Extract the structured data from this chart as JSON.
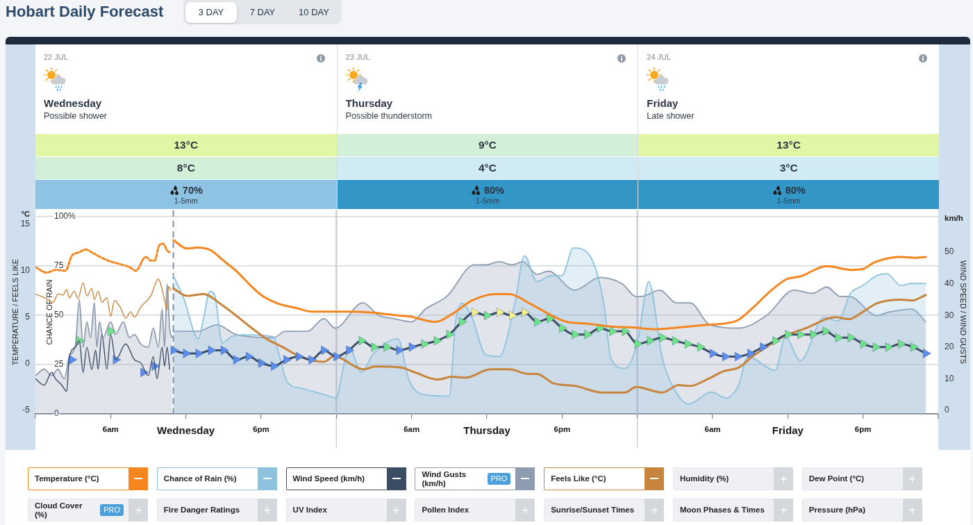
{
  "chart_data": [
    {
      "type": "other",
      "title": "Hobart Daily Forecast",
      "annotations": [
        "3 DAY",
        "7 DAY",
        "10 DAY"
      ]
    },
    {
      "type": "other",
      "categories": [
        "Wednesday",
        "Thursday",
        "Friday"
      ],
      "series": [
        {
          "colors": [
            "#e2f7a5",
            "#d3efd7",
            "#e2f7a5"
          ],
          "values": [
            13,
            9,
            13
          ],
          "value_labels": [
            "13°C",
            "9°C",
            "13°C"
          ]
        },
        {
          "colors": [
            "#d3efd7",
            "#d1ebf5",
            "#d1ebf5"
          ],
          "values": [
            8,
            4,
            3
          ],
          "value_labels": [
            "8°C",
            "4°C",
            "3°C"
          ]
        },
        {
          "colors": [
            "#8ec3e3",
            "#3296c6",
            "#3296c6"
          ],
          "values": [
            70,
            80,
            80
          ],
          "value_labels": [
            "70%",
            "80%",
            "80%"
          ]
        }
      ],
      "annotations": [
        "22 JUL",
        "Possible shower",
        "1-5mm",
        "23 JUL",
        "Possible thunderstorm",
        "1-5mm",
        "24 JUL",
        "Late shower",
        "1-5mm"
      ]
    },
    {
      "type": "line",
      "ylabel": "TEMPERATURE / FEELS LIKE",
      "y2label": "CHANCE OF RAIN",
      "y3label": "WIND SPEED / WIND GUSTS",
      "xlim": [
        "--07-22T00:00",
        "--07-25T00:00"
      ],
      "xticks": [
        {
          "value": "--07-22T00:00",
          "label": null
        },
        {
          "value": "--07-22T06:00",
          "label": "6am"
        },
        {
          "value": "--07-22T12:00",
          "label": "Wednesday"
        },
        {
          "value": "--07-22T18:00",
          "label": "6pm"
        },
        {
          "value": "--07-23T00:00",
          "label": null
        },
        {
          "value": "--07-23T06:00",
          "label": "6am"
        },
        {
          "value": "--07-23T12:00",
          "label": "Thursday"
        },
        {
          "value": "--07-23T18:00",
          "label": "6pm"
        },
        {
          "value": "--07-24T00:00",
          "label": null
        },
        {
          "value": "--07-24T06:00",
          "label": "6am"
        },
        {
          "value": "--07-24T12:00",
          "label": "Friday"
        },
        {
          "value": "--07-24T18:00",
          "label": "6pm"
        },
        {
          "value": "--07-25T00:00",
          "label": null
        }
      ],
      "ylim": [
        -5.4,
        16.5
      ],
      "yticks": [
        -5,
        0,
        5,
        10,
        15
      ],
      "y2lim": [
        0,
        103
      ],
      "y2ticks": [
        0,
        25,
        50,
        75,
        {
          "value": 100,
          "label": "100%"
        }
      ],
      "y3lim": [
        -1.1,
        63.2
      ],
      "y3ticks": [
        0,
        10,
        20,
        30,
        40,
        50
      ],
      "grid": "y2",
      "legend": "bottom",
      "marker": "none",
      "ref_lines": [
        {
          "axis": "x",
          "value": "--07-22T11:00",
          "line_style": "dashed",
          "color": "#7d8ea3"
        },
        {
          "axis": "x",
          "value": "--07-23T00:00",
          "color": "#c9d0d8"
        },
        {
          "axis": "x",
          "value": "--07-24T00:00",
          "color": "#c9d0d8"
        }
      ],
      "annotations": [
        "°C",
        "km/h",
        "PRO",
        "PRO",
        "Humidity (%)",
        "Dew Point (°C)",
        "Cloud Cover (%)",
        "Fire Danger Ratings",
        "UV Index",
        "Pollen Index",
        "Sunrise/Sunset Times",
        "Moon Phases & Times",
        "Pressure (hPa)"
      ],
      "series": [
        {
          "name": "Temperature (°C)",
          "type": "line",
          "color": "#f5861f",
          "x": [
            "--07-22T11:00",
            "--07-22T12:06",
            "--07-22T12:54",
            "--07-22T14:00",
            "--07-22T14:54",
            "--07-22T16:00",
            "--07-22T17:06",
            "--07-22T18:00",
            "--07-22T19:18",
            "--07-22T20:48",
            "--07-22T22:06",
            "--07-23T00:18",
            "--07-23T01:00",
            "--07-23T02:54",
            "--07-23T04:54",
            "--07-23T05:48",
            "--07-23T07:54",
            "--07-23T09:24",
            "--07-23T10:48",
            "--07-23T12:42",
            "--07-23T13:48",
            "--07-23T15:24",
            "--07-23T17:18",
            "--07-23T18:24",
            "--07-23T20:06",
            "--07-23T21:54",
            "--07-23T23:42",
            "--07-24T01:24",
            "--07-24T03:18",
            "--07-24T05:42",
            "--07-24T07:54",
            "--07-24T09:12",
            "--07-24T10:36",
            "--07-24T11:54",
            "--07-24T13:00",
            "--07-24T15:06",
            "--07-24T17:06",
            "--07-24T18:00",
            "--07-24T18:54",
            "--07-24T21:00",
            "--07-24T22:06",
            "--07-24T23:00"
          ],
          "values": [
            13.3,
            12.4,
            12.5,
            12.2,
            11.2,
            10,
            8.5,
            7.4,
            6.5,
            6,
            5.6,
            5.6,
            5.6,
            5.5,
            5.2,
            5.1,
            4.5,
            5.5,
            6.8,
            7.5,
            7.5,
            6.5,
            5.1,
            4.5,
            4.3,
            4,
            3.9,
            3.7,
            3.9,
            4.2,
            4.6,
            6,
            7.8,
            9.1,
            9.4,
            10.5,
            10.1,
            10.2,
            10.9,
            11.5,
            11.4,
            11.5
          ]
        },
        {
          "type": "line",
          "color": "#f5861f",
          "line_style": "dotted",
          "x": [
            "--07-22T00:00",
            "--07-22T00:54",
            "--07-22T01:36",
            "--07-22T02:24",
            "--07-22T02:54",
            "--07-22T03:30",
            "--07-22T04:00",
            "--07-22T04:36",
            "--07-22T05:18",
            "--07-22T06:00",
            "--07-22T06:48",
            "--07-22T07:30",
            "--07-22T08:00",
            "--07-22T08:48",
            "--07-22T09:12",
            "--07-22T09:30",
            "--07-22T09:54",
            "--07-22T10:12",
            "--07-22T10:30",
            "--07-22T10:48"
          ],
          "values": [
            10.4,
            9.8,
            10.1,
            10,
            11.6,
            12,
            12.3,
            11.9,
            11.4,
            11,
            10.7,
            10.4,
            10,
            11.5,
            11.1,
            11.1,
            12.8,
            12.9,
            12.2,
            11.9
          ]
        },
        {
          "name": "Chance of Rain (%)",
          "type": "area",
          "axis": "y2",
          "color": "#8ec3e0",
          "x": [
            "--07-22T11:00",
            "--07-22T11:48",
            "--07-22T13:00",
            "--07-22T13:24",
            "--07-22T13:54",
            "--07-22T14:18",
            "--07-22T14:54",
            "--07-22T15:36",
            "--07-22T16:36",
            "--07-22T19:00",
            "--07-22T19:18",
            "--07-22T20:06",
            "--07-22T21:12",
            "--07-22T23:24",
            "--07-23T00:00",
            "--07-23T00:30",
            "--07-23T01:00",
            "--07-23T02:00",
            "--07-23T02:54",
            "--07-23T04:54",
            "--07-23T05:48",
            "--07-23T06:48",
            "--07-23T09:00",
            "--07-23T09:30",
            "--07-23T10:00",
            "--07-23T10:48",
            "--07-23T11:54",
            "--07-23T13:00",
            "--07-23T14:12",
            "--07-23T15:00",
            "--07-23T16:00",
            "--07-23T17:06",
            "--07-23T18:00",
            "--07-23T18:54",
            "--07-23T20:06",
            "--07-23T21:18",
            "--07-23T21:54",
            "--07-23T23:00",
            "--07-24T00:06",
            "--07-24T00:42",
            "--07-24T00:54",
            "--07-24T02:00",
            "--07-24T02:54",
            "--07-24T04:06",
            "--07-24T05:54",
            "--07-24T07:06",
            "--07-24T08:06",
            "--07-24T08:48",
            "--07-24T11:00",
            "--07-24T11:48",
            "--07-24T13:00",
            "--07-24T14:54",
            "--07-24T16:00",
            "--07-24T17:00",
            "--07-24T18:00",
            "--07-24T19:06",
            "--07-24T19:54",
            "--07-24T21:00",
            "--07-24T21:54",
            "--07-24T23:00"
          ],
          "values": [
            70,
            59,
            38,
            48,
            62,
            60,
            36,
            39,
            40,
            39,
            33,
            16,
            13,
            9,
            8,
            22,
            34,
            21,
            30,
            38,
            17,
            10,
            9,
            46,
            56,
            49,
            30,
            29,
            55,
            80,
            67,
            70,
            70,
            84,
            81,
            57,
            28,
            23,
            39,
            63,
            67,
            28,
            13,
            5,
            11,
            8,
            15,
            29,
            22,
            39,
            27,
            49,
            47,
            61,
            65,
            70,
            71,
            65,
            66,
            66
          ]
        },
        {
          "name": "Wind Speed (km/h)",
          "type": "line",
          "axis": "y3",
          "color": "#3b4d64",
          "marker": "triangle",
          "x": [
            "--07-22T11:00",
            "--07-22T12:00",
            "--07-22T13:00",
            "--07-22T14:00",
            "--07-22T15:00",
            "--07-22T16:00",
            "--07-22T17:00",
            "--07-22T18:00",
            "--07-22T19:00",
            "--07-22T20:00",
            "--07-22T21:00",
            "--07-22T22:00",
            "--07-22T23:00",
            "--07-23T00:00",
            "--07-23T01:00",
            "--07-23T02:00",
            "--07-23T03:00",
            "--07-23T04:00",
            "--07-23T05:00",
            "--07-23T06:00",
            "--07-23T07:00",
            "--07-23T08:00",
            "--07-23T09:00",
            "--07-23T10:00",
            "--07-23T11:00",
            "--07-23T12:00",
            "--07-23T13:00",
            "--07-23T14:00",
            "--07-23T15:00",
            "--07-23T16:00",
            "--07-23T17:00",
            "--07-23T18:00",
            "--07-23T19:00",
            "--07-23T20:00",
            "--07-23T21:00",
            "--07-23T22:00",
            "--07-23T23:00",
            "--07-24T00:00",
            "--07-24T01:00",
            "--07-24T02:00",
            "--07-24T03:00",
            "--07-24T04:00",
            "--07-24T05:00",
            "--07-24T06:00",
            "--07-24T07:00",
            "--07-24T08:00",
            "--07-24T09:00",
            "--07-24T10:00",
            "--07-24T11:00",
            "--07-24T12:00",
            "--07-24T13:00",
            "--07-24T14:00",
            "--07-24T15:00",
            "--07-24T16:00",
            "--07-24T17:00",
            "--07-24T18:00",
            "--07-24T19:00",
            "--07-24T20:00",
            "--07-24T21:00",
            "--07-24T22:00",
            "--07-24T23:00"
          ],
          "values": [
            19,
            18,
            18,
            19,
            19,
            16,
            17,
            15,
            14,
            16,
            17,
            16,
            19,
            17,
            19,
            22,
            20,
            20,
            19,
            20,
            21,
            22,
            24,
            28,
            31,
            30,
            31,
            30,
            31,
            28,
            29,
            26,
            24,
            24,
            26,
            25,
            25,
            21,
            22,
            23,
            22,
            21,
            20,
            18,
            17,
            17,
            18,
            20,
            22,
            24,
            24,
            24,
            25,
            23,
            23,
            21,
            20,
            20,
            21,
            20,
            18
          ],
          "colors": [
            "#5b8def",
            "#5b8def",
            "#5b8def",
            "#5b8def",
            "#5b8def",
            "#5b8def",
            "#5b8def",
            "#5b8def",
            "#5b8def",
            "#5b8def",
            "#5b8def",
            "#5b8def",
            "#5b8def",
            "#5b8def",
            "#5b8def",
            "#6fe38a",
            "#6fe38a",
            "#6fe38a",
            "#5b8def",
            "#5b8def",
            "#6fe38a",
            "#6fe38a",
            "#6fe38a",
            "#6fe38a",
            "#f3ef8a",
            "#6fe38a",
            "#f3ef8a",
            "#f3ef8a",
            "#f3ef8a",
            "#6fe38a",
            "#6fe38a",
            "#6fe38a",
            "#6fe38a",
            "#6fe38a",
            "#6fe38a",
            "#6fe38a",
            "#6fe38a",
            "#6fe38a",
            "#6fe38a",
            "#6fe38a",
            "#6fe38a",
            "#6fe38a",
            "#6fe38a",
            "#5b8def",
            "#5b8def",
            "#5b8def",
            "#5b8def",
            "#5b8def",
            "#6fe38a",
            "#6fe38a",
            "#6fe38a",
            "#6fe38a",
            "#6fe38a",
            "#6fe38a",
            "#6fe38a",
            "#6fe38a",
            "#6fe38a",
            "#6fe38a",
            "#6fe38a",
            "#6fe38a",
            "#5b8def"
          ]
        },
        {
          "type": "line",
          "axis": "y3",
          "color": "#3b4d64",
          "x": [
            "--07-22T00:00",
            "--07-22T00:42",
            "--07-22T01:18",
            "--07-22T01:36",
            "--07-22T02:06",
            "--07-22T02:30",
            "--07-22T02:42",
            "--07-22T03:12",
            "--07-22T03:30",
            "--07-22T03:48",
            "--07-22T04:06",
            "--07-22T04:30",
            "--07-22T04:48",
            "--07-22T05:00",
            "--07-22T05:18",
            "--07-22T05:42",
            "--07-22T06:00",
            "--07-22T06:24",
            "--07-22T07:12",
            "--07-22T07:54",
            "--07-22T08:24",
            "--07-22T09:00",
            "--07-22T09:24",
            "--07-22T09:42",
            "--07-22T10:06",
            "--07-22T10:18",
            "--07-22T10:30",
            "--07-22T10:42"
          ],
          "values": [
            10,
            8,
            12,
            10,
            8,
            6,
            17,
            20,
            22,
            12,
            20,
            13,
            19,
            13,
            24,
            13,
            24,
            16,
            21,
            16,
            15,
            11,
            17,
            10,
            20,
            14,
            20,
            13
          ]
        },
        {
          "type": "scatter",
          "axis": "y3",
          "color": "#5b8def",
          "marker": "triangle",
          "x": [
            "--07-22T02:54",
            "--07-22T03:30",
            "--07-22T06:00",
            "--07-22T06:24",
            "--07-22T08:36",
            "--07-22T09:30"
          ],
          "values": [
            16,
            22,
            25,
            16,
            12,
            14
          ],
          "colors": [
            "#5b8def",
            "#6fe38a",
            "#6fe38a",
            "#5b8def",
            "#5b8def",
            "#5b8def"
          ]
        },
        {
          "name": "Wind Gusts (km/h)",
          "type": "area",
          "axis": "y3",
          "color": "#8d9cb0",
          "x": [
            "--07-22T11:00",
            "--07-22T12:54",
            "--07-22T14:30",
            "--07-22T16:00",
            "--07-22T19:00",
            "--07-22T19:54",
            "--07-22T21:42",
            "--07-22T23:00",
            "--07-22T23:54",
            "--07-23T02:06",
            "--07-23T03:24",
            "--07-23T04:36",
            "--07-23T06:00",
            "--07-23T07:06",
            "--07-23T08:48",
            "--07-23T11:00",
            "--07-23T11:54",
            "--07-23T13:00",
            "--07-23T14:00",
            "--07-23T14:54",
            "--07-23T16:00",
            "--07-23T16:54",
            "--07-23T19:00",
            "--07-23T21:00",
            "--07-23T22:48",
            "--07-23T23:54",
            "--07-24T00:18",
            "--07-24T01:48",
            "--07-24T03:06",
            "--07-24T04:12",
            "--07-24T05:48",
            "--07-24T08:06",
            "--07-24T10:18",
            "--07-24T12:30",
            "--07-24T14:00",
            "--07-24T15:06",
            "--07-24T16:12",
            "--07-24T16:54",
            "--07-24T19:06",
            "--07-24T20:00",
            "--07-24T21:54",
            "--07-24T23:00"
          ],
          "values": [
            25,
            25,
            27,
            24,
            23,
            25,
            25,
            29,
            26,
            34,
            30,
            29,
            28,
            32,
            36,
            46,
            46,
            47,
            46,
            47,
            43,
            44,
            38,
            42,
            40,
            36,
            36,
            38,
            34,
            34,
            27,
            26,
            30,
            38,
            37,
            39,
            36,
            36,
            30,
            31,
            32,
            28
          ]
        },
        {
          "type": "area",
          "axis": "y3",
          "color": "#8d9cb0",
          "x": [
            "--07-22T00:00",
            "--07-22T00:42",
            "--07-22T01:18",
            "--07-22T01:48",
            "--07-22T02:18",
            "--07-22T02:42",
            "--07-22T03:12",
            "--07-22T03:30",
            "--07-22T03:48",
            "--07-22T04:06",
            "--07-22T04:24",
            "--07-22T04:42",
            "--07-22T04:54",
            "--07-22T05:06",
            "--07-22T05:24",
            "--07-22T06:00",
            "--07-22T06:24",
            "--07-22T07:00",
            "--07-22T07:30",
            "--07-22T07:54",
            "--07-22T08:24",
            "--07-22T09:00",
            "--07-22T09:24",
            "--07-22T09:48",
            "--07-22T10:06",
            "--07-22T10:18",
            "--07-22T10:30",
            "--07-22T10:42",
            "--07-22T10:54"
          ],
          "values": [
            11,
            13,
            11,
            13,
            10,
            17,
            21,
            35,
            20,
            28,
            23,
            34,
            20,
            28,
            23,
            28,
            24,
            28,
            23,
            24,
            21,
            20,
            26,
            20,
            32,
            20,
            40,
            26,
            23
          ]
        },
        {
          "name": "Feels Like (°C)",
          "type": "line",
          "color": "#c7843c",
          "x": [
            "--07-22T11:00",
            "--07-22T12:06",
            "--07-22T13:24",
            "--07-22T14:54",
            "--07-22T15:48",
            "--07-22T17:06",
            "--07-22T18:24",
            "--07-22T19:42",
            "--07-22T21:12",
            "--07-22T23:00",
            "--07-22T23:48",
            "--07-23T02:12",
            "--07-23T03:06",
            "--07-23T05:06",
            "--07-23T06:12",
            "--07-23T08:06",
            "--07-23T09:12",
            "--07-23T10:18",
            "--07-23T12:18",
            "--07-23T13:48",
            "--07-23T15:18",
            "--07-23T16:00",
            "--07-23T17:18",
            "--07-23T19:06",
            "--07-23T21:12",
            "--07-23T23:00",
            "--07-23T23:54",
            "--07-24T02:00",
            "--07-24T03:18",
            "--07-24T04:12",
            "--07-24T05:42",
            "--07-24T06:54",
            "--07-24T08:06",
            "--07-24T09:12",
            "--07-24T10:18",
            "--07-24T11:36",
            "--07-24T13:24",
            "--07-24T15:48",
            "--07-24T16:54",
            "--07-24T18:00",
            "--07-24T19:06",
            "--07-24T21:00",
            "--07-24T21:54",
            "--07-24T23:00"
          ],
          "values": [
            8.1,
            7.3,
            7.5,
            6.3,
            5.4,
            4,
            2.7,
            1.8,
            0.7,
            0.2,
            0.8,
            -0.6,
            -0.3,
            -0.4,
            -0.9,
            -1.7,
            -1.4,
            -1.5,
            -0.6,
            -0.6,
            -1.1,
            -1.1,
            -2.1,
            -2.4,
            -3.1,
            -3.1,
            -2.5,
            -3.1,
            -2.3,
            -2.4,
            -1.6,
            -0.8,
            -0.4,
            0.8,
            1.8,
            2.9,
            3.8,
            5,
            4.8,
            5.6,
            6.5,
            6.9,
            6.8,
            7.4
          ]
        },
        {
          "type": "line",
          "color": "#c7843c",
          "x": [
            "--07-22T00:00",
            "--07-22T00:54",
            "--07-22T01:24",
            "--07-22T01:48",
            "--07-22T02:12",
            "--07-22T02:30",
            "--07-22T02:42",
            "--07-22T03:06",
            "--07-22T03:24",
            "--07-22T03:48",
            "--07-22T04:06",
            "--07-22T04:30",
            "--07-22T04:42",
            "--07-22T05:00",
            "--07-22T05:18",
            "--07-22T05:42",
            "--07-22T06:00",
            "--07-22T06:18",
            "--07-22T06:48",
            "--07-22T07:12",
            "--07-22T07:36",
            "--07-22T07:54",
            "--07-22T08:24",
            "--07-22T09:12",
            "--07-22T09:48",
            "--07-22T10:12",
            "--07-22T10:30",
            "--07-22T10:36",
            "--07-22T10:48"
          ],
          "values": [
            7.5,
            7,
            6.6,
            7.5,
            7.4,
            8,
            7.1,
            7.8,
            7,
            8.7,
            7.3,
            8.1,
            6.9,
            7.8,
            6.6,
            7.1,
            5.1,
            6.8,
            6,
            4.9,
            5.6,
            5,
            6.1,
            7.3,
            9.1,
            7.5,
            5.8,
            8.3,
            7.9
          ]
        }
      ]
    }
  ]
}
